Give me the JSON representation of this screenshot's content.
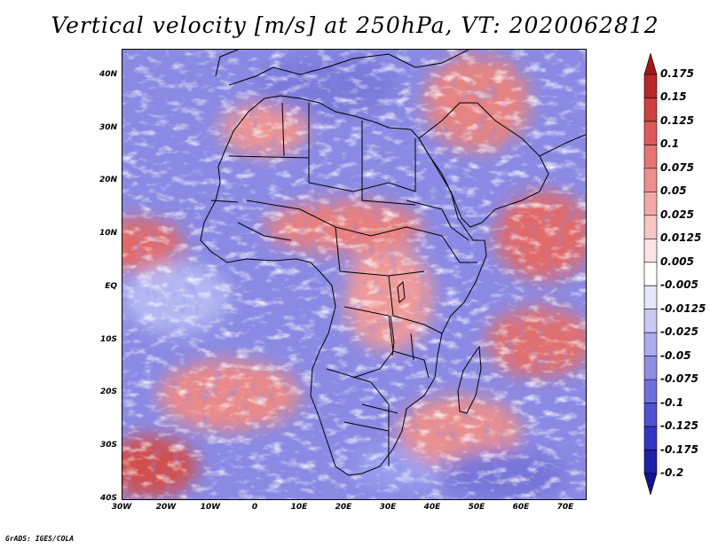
{
  "title": "Vertical velocity [m/s] at 250hPa, VT: 2020062812",
  "credit": "GrADS: IGES/COLA",
  "latitude_labels": [
    "40N",
    "30N",
    "20N",
    "10N",
    "EQ",
    "10S",
    "20S",
    "30S",
    "40S"
  ],
  "longitude_labels": [
    "30W",
    "20W",
    "10W",
    "0",
    "10E",
    "20E",
    "30E",
    "40E",
    "50E",
    "60E",
    "70E"
  ],
  "colorbar": {
    "labels": [
      "0.175",
      "0.15",
      "0.125",
      "0.1",
      "0.075",
      "0.05",
      "0.025",
      "0.0125",
      "0.005",
      "-0.005",
      "-0.0125",
      "-0.025",
      "-0.05",
      "-0.075",
      "-0.1",
      "-0.125",
      "-0.175",
      "-0.2"
    ],
    "colors": [
      "#a01818",
      "#b82828",
      "#cf4040",
      "#dd5a5a",
      "#e87474",
      "#f08e8e",
      "#f5a8a8",
      "#f9c6c6",
      "#fce4e4",
      "#ffffff",
      "#e6e6fb",
      "#c9c9f4",
      "#ababee",
      "#8d8de6",
      "#6f6fdd",
      "#5151d2",
      "#3434c4",
      "#2020a8",
      "#141490"
    ]
  },
  "colors": {
    "positive": "#e06060",
    "negative": "#6a6ae0",
    "background": "#ffffff"
  }
}
